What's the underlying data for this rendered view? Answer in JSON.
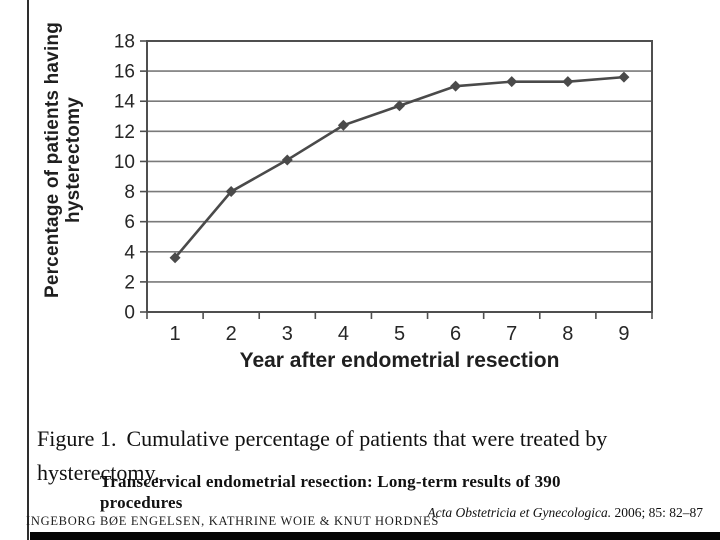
{
  "chart_data": {
    "type": "line",
    "x": [
      1,
      2,
      3,
      4,
      5,
      6,
      7,
      8,
      9
    ],
    "series": [
      {
        "name": "Cumulative percentage of patients treated by hysterectomy",
        "values": [
          3.6,
          8.0,
          10.1,
          12.4,
          13.7,
          15.0,
          15.3,
          15.3,
          15.6
        ]
      }
    ],
    "xlabel": "Year after endometrial resection",
    "ylabel": "Percentage of patients having hysterectomy",
    "ylabel_lines": [
      "Percentage of patients having",
      "hysterectomy"
    ],
    "ylim": [
      0,
      18
    ],
    "yticks": [
      0,
      2,
      4,
      6,
      8,
      10,
      12,
      14,
      16,
      18
    ],
    "grid": true,
    "legend": "none",
    "marker": "diamond",
    "colors": {
      "line": "#4a4a4a",
      "marker": "#4a4a4a",
      "grid": "#7a7a7a",
      "axis": "#4f4f4f",
      "tick_text": "#262626"
    }
  },
  "caption": {
    "label": "Figure 1.",
    "text": "Cumulative percentage of patients that were treated by hysterectomy."
  },
  "paper": {
    "title": "Transcervical endometrial resection: Long-term results of 390 procedures",
    "authors": "INGEBORG BØE ENGELSEN, KATHRINE WOIE & KNUT HORDNES",
    "citation_journal": "Acta Obstetricia et Gynecologica.",
    "citation_detail": " 2006; 85: 82–87"
  }
}
